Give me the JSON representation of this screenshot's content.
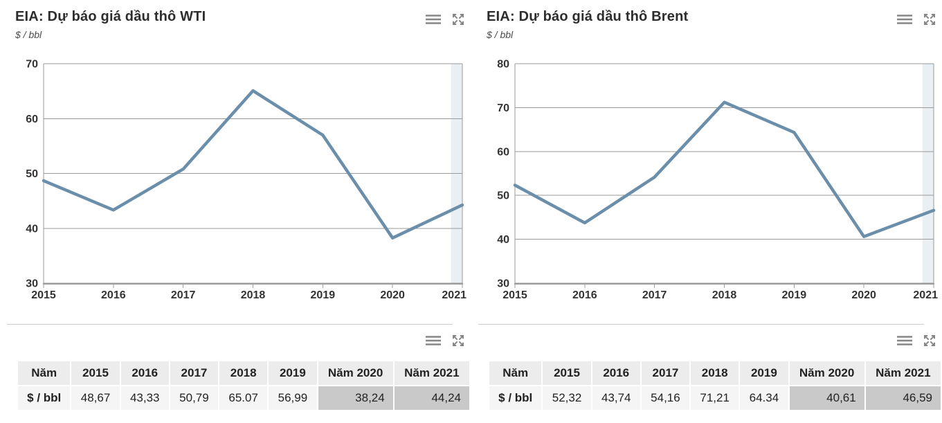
{
  "colors": {
    "line": "#6b8fab",
    "grid": "#999999",
    "axis": "#9c9c9c",
    "band": "#e9eff2",
    "axis_text": "#333333",
    "icon": "#868686",
    "divider": "#cccccc",
    "table_header_bg": "#ececec",
    "table_cell_bg": "#f5f5f5",
    "table_highlight_bg": "#c9c9c9"
  },
  "icons": {
    "context_menu": "hamburger-menu-icon",
    "fullscreen": "expand-arrows-icon"
  },
  "panels": [
    {
      "title": "EIA: Dự báo giá dầu thô WTI",
      "subtitle": "$ / bbl"
    },
    {
      "title": "EIA: Dự báo giá dầu thô Brent",
      "subtitle": "$ / bbl"
    }
  ],
  "chart_data": [
    {
      "type": "line",
      "title": "EIA: Dự báo giá dầu thô WTI",
      "ylabel": "$ / bbl",
      "xlabel": "",
      "categories": [
        "2015",
        "2016",
        "2017",
        "2018",
        "2019",
        "2020",
        "2021"
      ],
      "values": [
        48.67,
        43.33,
        50.79,
        65.07,
        56.99,
        38.24,
        44.24
      ],
      "ylim": [
        30,
        70
      ],
      "ytick_step": 10,
      "grid": true,
      "legend": "none",
      "forecast_band_start_frac": 0.973
    },
    {
      "type": "line",
      "title": "EIA: Dự báo giá dầu thô Brent",
      "ylabel": "$ / bbl",
      "xlabel": "",
      "categories": [
        "2015",
        "2016",
        "2017",
        "2018",
        "2019",
        "2020",
        "2021"
      ],
      "values": [
        52.32,
        43.74,
        54.16,
        71.21,
        64.34,
        40.61,
        46.59
      ],
      "ylim": [
        30,
        80
      ],
      "ytick_step": 10,
      "grid": true,
      "legend": "none",
      "forecast_band_start_frac": 0.973
    }
  ],
  "tables": [
    {
      "header": [
        "Năm",
        "2015",
        "2016",
        "2017",
        "2018",
        "2019",
        "Năm 2020",
        "Năm 2021"
      ],
      "rows": [
        [
          "$ / bbl",
          "48,67",
          "43,33",
          "50,79",
          "65.07",
          "56,99",
          "38,24",
          "44,24"
        ]
      ],
      "highlight_last_n": 2
    },
    {
      "header": [
        "Năm",
        "2015",
        "2016",
        "2017",
        "2018",
        "2019",
        "Năm 2020",
        "Năm 2021"
      ],
      "rows": [
        [
          "$ / bbl",
          "52,32",
          "43,74",
          "54,16",
          "71,21",
          "64.34",
          "40,61",
          "46,59"
        ]
      ],
      "highlight_last_n": 2
    }
  ]
}
